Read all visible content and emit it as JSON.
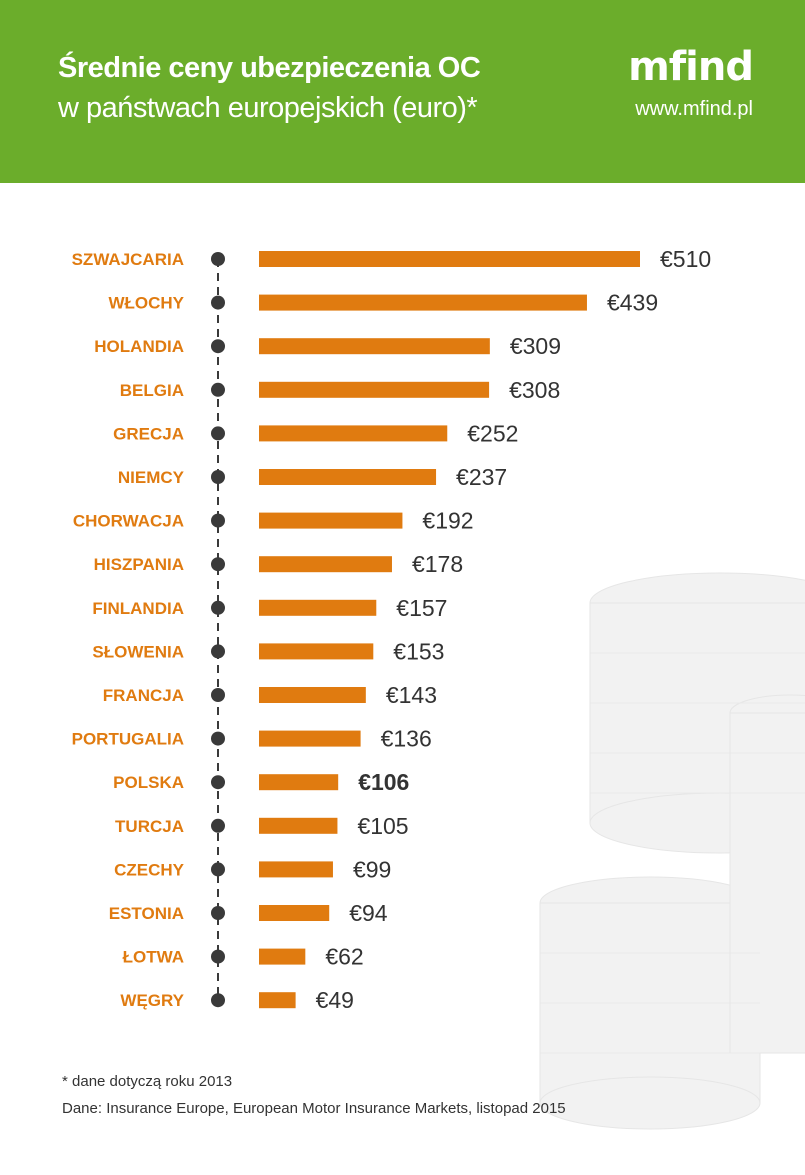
{
  "header": {
    "title_line1": "Średnie ceny ubezpieczenia OC",
    "title_line2": "w państwach europejskich (euro)*",
    "logo": "mfind",
    "url": "www.mfind.pl"
  },
  "colors": {
    "header_bg": "#6bad2b",
    "bar": "#e07b10",
    "label": "#e07b10",
    "value": "#333333",
    "timeline": "#3a3a3a"
  },
  "chart_data": {
    "type": "bar",
    "orientation": "horizontal",
    "categories": [
      "SZWAJCARIA",
      "WŁOCHY",
      "HOLANDIA",
      "BELGIA",
      "GRECJA",
      "NIEMCY",
      "CHORWACJA",
      "HISZPANIA",
      "FINLANDIA",
      "SŁOWENIA",
      "FRANCJA",
      "PORTUGALIA",
      "POLSKA",
      "TURCJA",
      "CZECHY",
      "ESTONIA",
      "ŁOTWA",
      "WĘGRY"
    ],
    "values": [
      510,
      439,
      309,
      308,
      252,
      237,
      192,
      178,
      157,
      153,
      143,
      136,
      106,
      105,
      99,
      94,
      62,
      49
    ],
    "value_labels": [
      "€510",
      "€439",
      "€309",
      "€308",
      "€252",
      "€237",
      "€192",
      "€178",
      "€157",
      "€153",
      "€143",
      "€136",
      "€106",
      "€105",
      "€99",
      "€94",
      "€62",
      "€49"
    ],
    "highlight": "POLSKA",
    "xlim": [
      0,
      510
    ]
  },
  "footer": {
    "footnote": "* dane dotyczą roku 2013",
    "source": "Dane: Insurance Europe, European Motor Insurance Markets, listopad 2015"
  }
}
